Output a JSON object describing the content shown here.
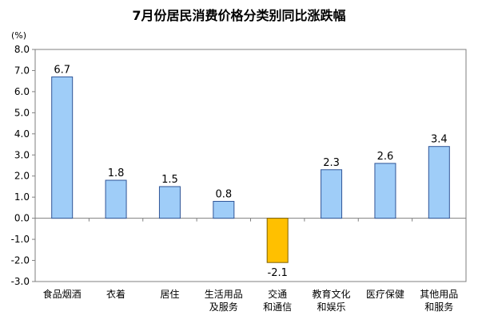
{
  "chart_data": {
    "type": "bar",
    "title": "7月份居民消费价格分类别同比涨跌幅",
    "unit": "(%)",
    "categories": [
      [
        "食品烟酒"
      ],
      [
        "衣着"
      ],
      [
        "居住"
      ],
      [
        "生活用品",
        "及服务"
      ],
      [
        "交通",
        "和通信"
      ],
      [
        "教育文化",
        "和娱乐"
      ],
      [
        "医疗保健"
      ],
      [
        "其他用品",
        "和服务"
      ]
    ],
    "values": [
      6.7,
      1.8,
      1.5,
      0.8,
      -2.1,
      2.3,
      2.6,
      3.4
    ],
    "value_labels": [
      "6.7",
      "1.8",
      "1.5",
      "0.8",
      "-2.1",
      "2.3",
      "2.6",
      "3.4"
    ],
    "ylim": [
      -3.0,
      8.0
    ],
    "yticks": [
      "8.0",
      "7.0",
      "6.0",
      "5.0",
      "4.0",
      "3.0",
      "2.0",
      "1.0",
      "0.0",
      "-1.0",
      "-2.0",
      "-3.0"
    ],
    "colors": {
      "positive": "#9fcdf8",
      "negative": "#ffc000",
      "stroke": "#2f5597"
    },
    "grid": false
  }
}
